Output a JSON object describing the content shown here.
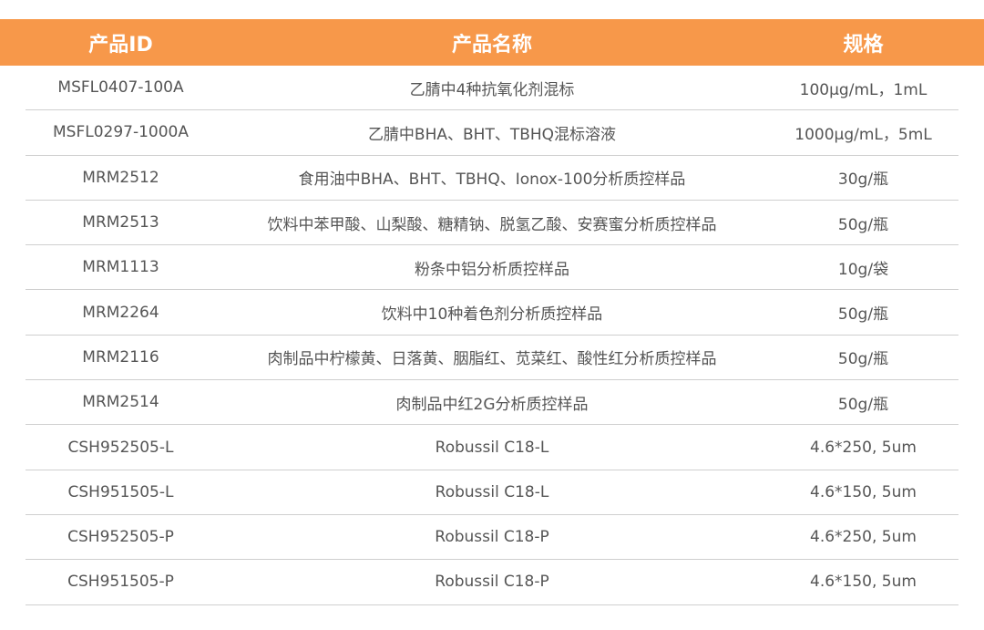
{
  "header": {
    "id": "产品ID",
    "name": "产品名称",
    "spec": "规格"
  },
  "header_color": "#F7984A",
  "rows": [
    {
      "id": "MSFL0407-100A",
      "name": "乙腈中4种抗氧化剂混标",
      "spec": "100μg/mL，1mL"
    },
    {
      "id": "MSFL0297-1000A",
      "name": "乙腈中BHA、BHT、TBHQ混标溶液",
      "spec": "1000μg/mL，5mL"
    },
    {
      "id": "MRM2512",
      "name": "食用油中BHA、BHT、TBHQ、Ionox-100分析质控样品",
      "spec": "30g/瓶"
    },
    {
      "id": "MRM2513",
      "name": "饮料中苯甲酸、山梨酸、糖精钠、脱氢乙酸、安赛蜜分析质控样品",
      "spec": "50g/瓶"
    },
    {
      "id": "MRM1113",
      "name": "粉条中铝分析质控样品",
      "spec": "10g/袋"
    },
    {
      "id": "MRM2264",
      "name": "饮料中10种着色剂分析质控样品",
      "spec": "50g/瓶"
    },
    {
      "id": "MRM2116",
      "name": "肉制品中柠檬黄、日落黄、胭脂红、苋菜红、酸性红分析质控样品",
      "spec": "50g/瓶"
    },
    {
      "id": "MRM2514",
      "name": "肉制品中红2G分析质控样品",
      "spec": "50g/瓶"
    },
    {
      "id": "CSH952505-L",
      "name": "Robussil C18-L",
      "spec": "4.6*250, 5um"
    },
    {
      "id": "CSH951505-L",
      "name": "Robussil C18-L",
      "spec": "4.6*150, 5um"
    },
    {
      "id": "CSH952505-P",
      "name": "Robussil C18-P",
      "spec": "4.6*250, 5um"
    },
    {
      "id": "CSH951505-P",
      "name": "Robussil C18-P",
      "spec": "4.6*150, 5um"
    }
  ]
}
